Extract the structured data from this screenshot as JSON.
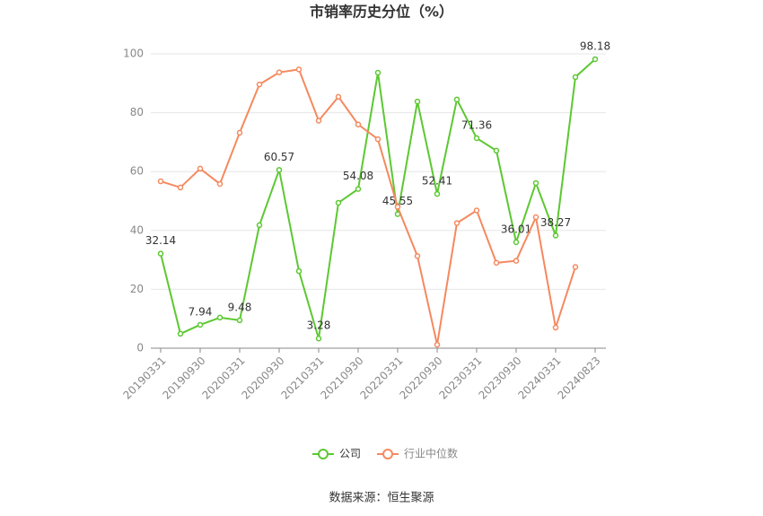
{
  "chart_data": {
    "type": "line",
    "title": "市销率历史分位（%）",
    "source": "数据来源：恒生聚源",
    "categories": [
      "20190331",
      null,
      "20190930",
      null,
      "20200331",
      null,
      "20200930",
      null,
      "20210331",
      null,
      "20210930",
      null,
      "20220331",
      null,
      "20220930",
      null,
      "20230331",
      null,
      "20230930",
      null,
      "20240331",
      null,
      "20240823"
    ],
    "series": [
      {
        "name": "公司",
        "color": "#5cc832",
        "values": [
          32.14,
          4.9,
          7.94,
          10.4,
          9.48,
          41.8,
          60.57,
          26.2,
          3.28,
          49.4,
          54.08,
          93.6,
          45.55,
          83.8,
          52.41,
          84.5,
          71.36,
          67.1,
          36.01,
          56.1,
          38.27,
          92.1,
          98.18
        ],
        "value_labels": [
          "32.14",
          null,
          "7.94",
          null,
          "9.48",
          null,
          "60.57",
          null,
          "3.28",
          null,
          "54.08",
          null,
          "45.55",
          null,
          "52.41",
          null,
          "71.36",
          null,
          "36.01",
          null,
          "38.27",
          null,
          "98.18"
        ]
      },
      {
        "name": "行业中位数",
        "color": "#f5895f",
        "values": [
          56.7,
          54.6,
          61,
          55.8,
          73.2,
          89.6,
          93.7,
          94.7,
          77.3,
          85.4,
          76,
          71,
          48,
          31.3,
          1.2,
          42.5,
          46.8,
          29,
          29.7,
          44.5,
          7,
          27.6,
          null
        ]
      }
    ],
    "ylim": [
      0,
      100
    ],
    "yticks": [
      0,
      20,
      40,
      60,
      80,
      100
    ],
    "grid": true,
    "legend": "bottom"
  }
}
